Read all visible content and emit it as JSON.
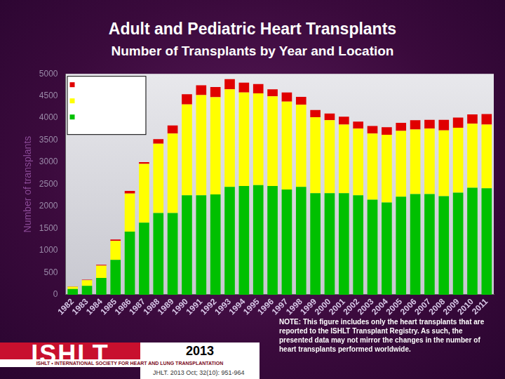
{
  "chart_data": {
    "type": "bar",
    "title": "Adult and Pediatric Heart Transplants",
    "subtitle": "Number of Transplants by Year and Location",
    "y_label": "Number of transplants",
    "annotations": [
      "NOTE: This figure includes only the heart transplants that are reported to the ISHLT Transplant Registry. As such, the presented data may not mirror the changes in the number of heart transplants performed worldwide.",
      "ISHLT",
      "2013",
      "ISHLT • INTERNATIONAL SOCIETY FOR HEART AND LUNG TRANSPLANTATION",
      "JHLT. 2013 Oct; 32(10): 951-964"
    ],
    "categories": [
      "1982",
      "1983",
      "1984",
      "1985",
      "1986",
      "1987",
      "1988",
      "1989",
      "1990",
      "1991",
      "1992",
      "1993",
      "1994",
      "1995",
      "1996",
      "1997",
      "1998",
      "1999",
      "2000",
      "2001",
      "2002",
      "2003",
      "2004",
      "2005",
      "2006",
      "2007",
      "2008",
      "2009",
      "2010",
      "2011"
    ],
    "series": [
      {
        "color": "#00c000",
        "values": [
          130,
          200,
          380,
          790,
          1430,
          1630,
          1850,
          1850,
          2250,
          2250,
          2270,
          2440,
          2460,
          2480,
          2460,
          2380,
          2440,
          2300,
          2300,
          2300,
          2250,
          2150,
          2090,
          2220,
          2280,
          2280,
          2230,
          2310,
          2420,
          2410
        ]
      },
      {
        "color": "#ffff00",
        "values": [
          50,
          130,
          280,
          430,
          860,
          1330,
          1570,
          1800,
          2060,
          2270,
          2200,
          2210,
          2120,
          2080,
          2030,
          1990,
          1860,
          1720,
          1650,
          1550,
          1510,
          1500,
          1530,
          1490,
          1460,
          1480,
          1490,
          1470,
          1450,
          1440
        ]
      },
      {
        "color": "#e00000",
        "values": [
          10,
          10,
          20,
          30,
          60,
          40,
          100,
          180,
          230,
          220,
          230,
          230,
          220,
          210,
          160,
          210,
          180,
          160,
          150,
          180,
          160,
          170,
          170,
          180,
          210,
          200,
          240,
          230,
          210,
          240
        ]
      }
    ],
    "stacked": true,
    "ylim": [
      0,
      5000
    ],
    "yticks": [
      0,
      500,
      1000,
      1500,
      2000,
      2500,
      3000,
      3500,
      4000,
      4500,
      5000
    ],
    "grid": false,
    "legend": "top-left"
  }
}
